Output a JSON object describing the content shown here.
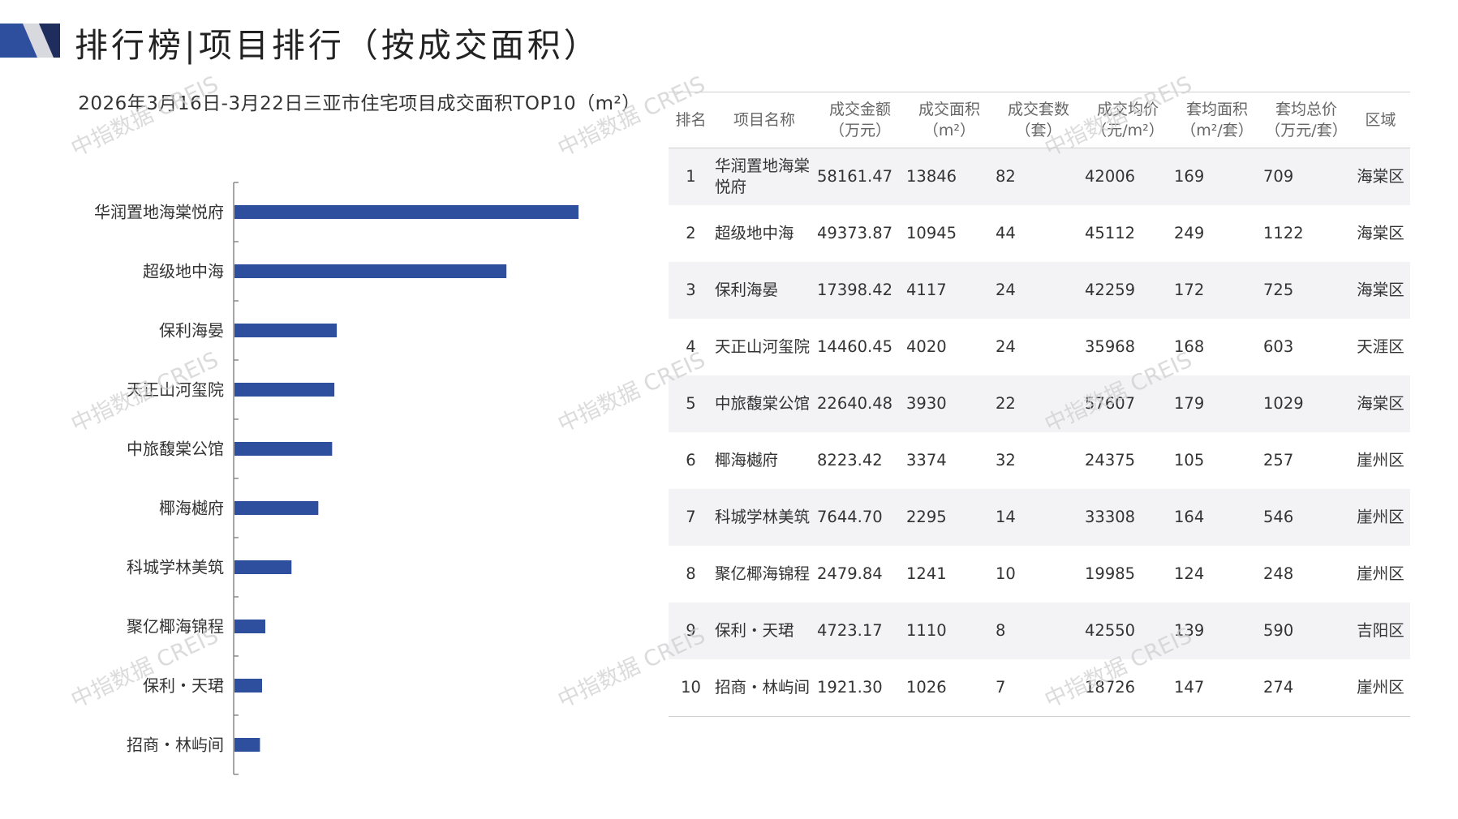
{
  "page": {
    "title": "排行榜|项目排行（按成交面积）",
    "brand_color": "#2e4e9e",
    "watermark": "中指数据 CREIS"
  },
  "chart_title": "2026年3月16日-3月22日三亚市住宅项目成交面积TOP10（m²）",
  "chart_data": {
    "type": "bar",
    "orientation": "horizontal",
    "title": "2026年3月16日-3月22日三亚市住宅项目成交面积TOP10（m²）",
    "categories": [
      "华润置地海棠悦府",
      "超级地中海",
      "保利海晏",
      "天正山河玺院",
      "中旅馥棠公馆",
      "椰海樾府",
      "科城学林美筑",
      "聚亿椰海锦程",
      "保利・天珺",
      "招商・林屿间"
    ],
    "values": [
      13846,
      10945,
      4117,
      4020,
      3930,
      3374,
      2295,
      1241,
      1110,
      1026
    ],
    "xlim": [
      0,
      16000
    ],
    "bar_color": "#2e4e9e",
    "grid": false,
    "xlabel": "",
    "ylabel": ""
  },
  "table": {
    "headers": [
      [
        "排名",
        ""
      ],
      [
        "项目名称",
        ""
      ],
      [
        "成交金额",
        "（万元）"
      ],
      [
        "成交面积",
        "（m²）"
      ],
      [
        "成交套数",
        "（套）"
      ],
      [
        "成交均价",
        "（元/m²）"
      ],
      [
        "套均面积",
        "（m²/套）"
      ],
      [
        "套均总价",
        "（万元/套）"
      ],
      [
        "区域",
        ""
      ]
    ],
    "rows": [
      [
        "1",
        "华润置地海棠悦府",
        "58161.47",
        "13846",
        "82",
        "42006",
        "169",
        "709",
        "海棠区"
      ],
      [
        "2",
        "超级地中海",
        "49373.87",
        "10945",
        "44",
        "45112",
        "249",
        "1122",
        "海棠区"
      ],
      [
        "3",
        "保利海晏",
        "17398.42",
        "4117",
        "24",
        "42259",
        "172",
        "725",
        "海棠区"
      ],
      [
        "4",
        "天正山河玺院",
        "14460.45",
        "4020",
        "24",
        "35968",
        "168",
        "603",
        "天涯区"
      ],
      [
        "5",
        "中旅馥棠公馆",
        "22640.48",
        "3930",
        "22",
        "57607",
        "179",
        "1029",
        "海棠区"
      ],
      [
        "6",
        "椰海樾府",
        "8223.42",
        "3374",
        "32",
        "24375",
        "105",
        "257",
        "崖州区"
      ],
      [
        "7",
        "科城学林美筑",
        "7644.70",
        "2295",
        "14",
        "33308",
        "164",
        "546",
        "崖州区"
      ],
      [
        "8",
        "聚亿椰海锦程",
        "2479.84",
        "1241",
        "10",
        "19985",
        "124",
        "248",
        "崖州区"
      ],
      [
        "9",
        "保利・天珺",
        "4723.17",
        "1110",
        "8",
        "42550",
        "139",
        "590",
        "吉阳区"
      ],
      [
        "10",
        "招商・林屿间",
        "1921.30",
        "1026",
        "7",
        "18726",
        "147",
        "274",
        "崖州区"
      ]
    ]
  }
}
